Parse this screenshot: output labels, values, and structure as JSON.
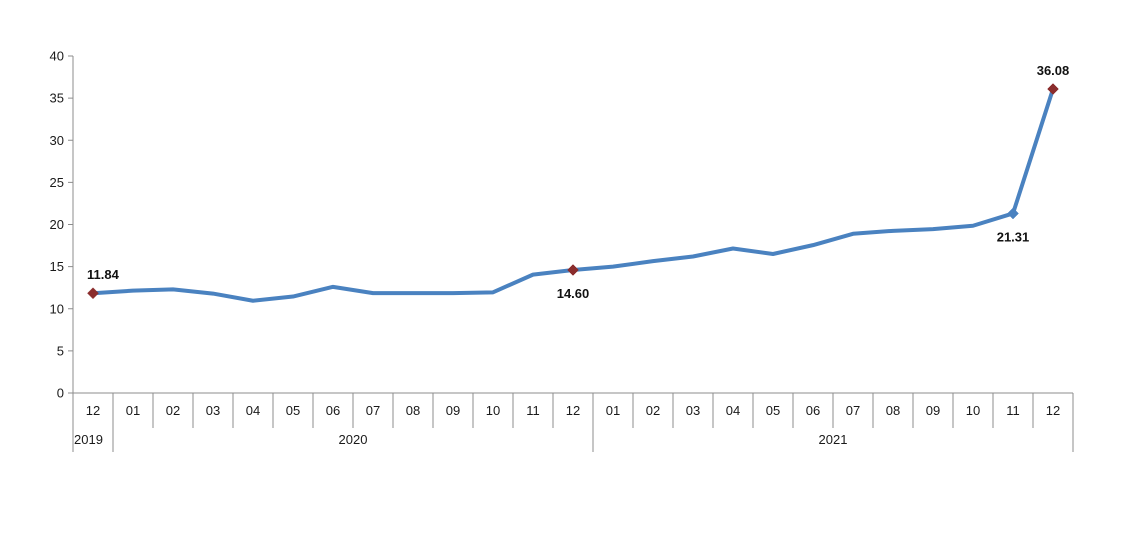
{
  "chart_data": {
    "type": "line",
    "x": [
      "12",
      "01",
      "02",
      "03",
      "04",
      "05",
      "06",
      "07",
      "08",
      "09",
      "10",
      "11",
      "12",
      "01",
      "02",
      "03",
      "04",
      "05",
      "06",
      "07",
      "08",
      "09",
      "10",
      "11",
      "12"
    ],
    "year_groups": [
      {
        "label": "2019",
        "start": 0,
        "end": 0
      },
      {
        "label": "2020",
        "start": 1,
        "end": 12
      },
      {
        "label": "2021",
        "start": 13,
        "end": 24
      }
    ],
    "series": [
      {
        "values": [
          11.84,
          12.15,
          12.3,
          11.8,
          10.95,
          11.45,
          12.6,
          11.85,
          11.85,
          11.85,
          11.95,
          14.05,
          14.6,
          15.0,
          15.65,
          16.2,
          17.15,
          16.5,
          17.55,
          18.9,
          19.25,
          19.45,
          19.85,
          21.31,
          36.08
        ],
        "color": "#4a82c0"
      }
    ],
    "markers": [
      {
        "index": 0,
        "label": "11.84",
        "color": "#8b2d2d",
        "label_pos": "above"
      },
      {
        "index": 12,
        "label": "14.60",
        "color": "#8b2d2d",
        "label_pos": "below"
      },
      {
        "index": 23,
        "label": "21.31",
        "color": "#4a82c0",
        "label_pos": "below"
      },
      {
        "index": 24,
        "label": "36.08",
        "color": "#8b2d2d",
        "label_pos": "above"
      }
    ],
    "y_ticks": [
      "0",
      "5",
      "10",
      "15",
      "20",
      "25",
      "30",
      "35",
      "40"
    ],
    "ylim": [
      0,
      40
    ],
    "grid": false,
    "title": "",
    "xlabel": "",
    "ylabel": ""
  }
}
